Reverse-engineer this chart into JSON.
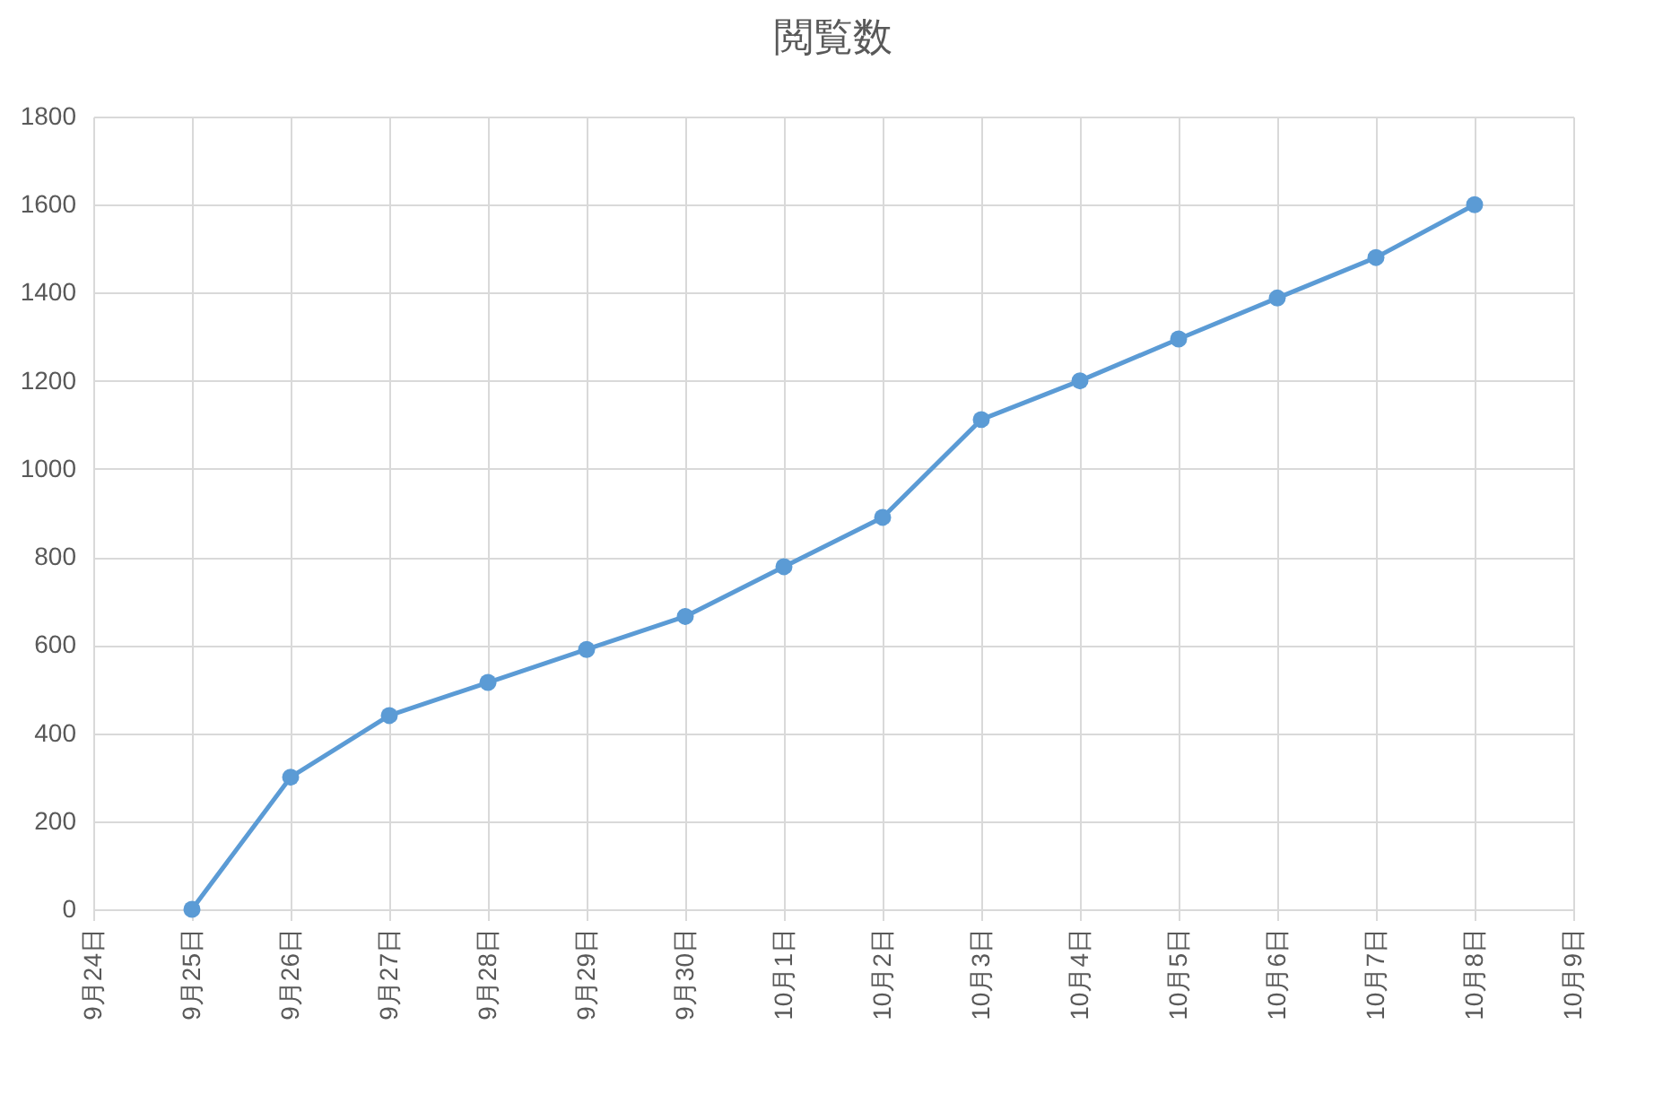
{
  "chart_data": {
    "type": "line",
    "title": "閲覧数",
    "categories": [
      "9月24日",
      "9月25日",
      "9月26日",
      "9月27日",
      "9月28日",
      "9月29日",
      "9月30日",
      "10月1日",
      "10月2日",
      "10月3日",
      "10月4日",
      "10月5日",
      "10月6日",
      "10月7日",
      "10月8日",
      "10月9日"
    ],
    "series": [
      {
        "color": "#5b9bd5",
        "values": [
          null,
          0,
          300,
          440,
          515,
          590,
          665,
          778,
          890,
          1112,
          1200,
          1295,
          1388,
          1480,
          1600,
          null
        ]
      }
    ],
    "ylim": [
      0,
      1800
    ],
    "yticks": [
      0,
      200,
      400,
      600,
      800,
      1000,
      1200,
      1400,
      1600,
      1800
    ],
    "grid": true,
    "marker": "circle",
    "line_style": "solid",
    "legend": false
  }
}
